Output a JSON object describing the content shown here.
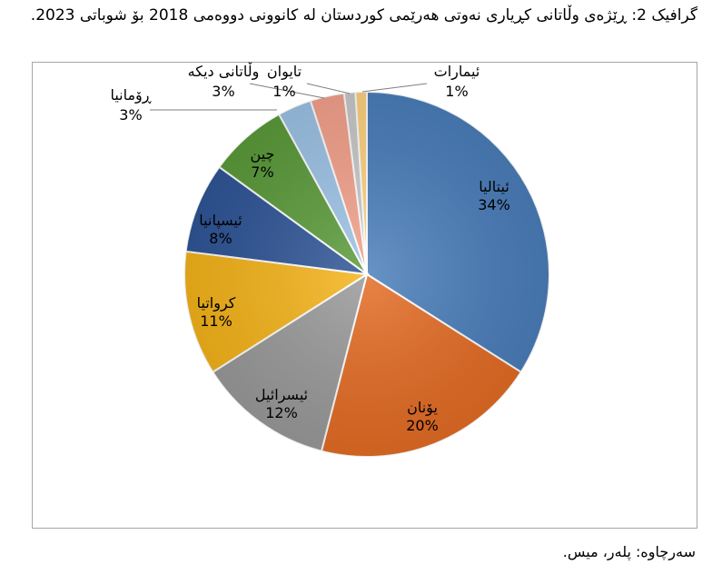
{
  "page": {
    "title": "گرافیک 2: ڕێژەی وڵاتانی کڕیاری نەوتی هەرێمی کوردستان لە کانوونی دووەمی 2018 بۆ شوباتی 2023.",
    "source": "سەرچاوە: پلەر، میس."
  },
  "chart_data": {
    "type": "pie",
    "title": "گرافیک 2: ڕێژەی وڵاتانی کڕیاری نەوتی هەرێمی کوردستان لە کانوونی دووەمی 2018 بۆ شوباتی 2023.",
    "value_unit": "%",
    "start_angle_deg": 0,
    "direction": "clockwise",
    "legend": "none",
    "slices": [
      {
        "label": "ئیتالیا",
        "value": 34,
        "display": "34%",
        "color": "#4a7ebb",
        "label_placement": "inside"
      },
      {
        "label": "یۆنان",
        "value": 20,
        "display": "20%",
        "color": "#e46c24",
        "label_placement": "inside"
      },
      {
        "label": "ئیسرائیل",
        "value": 12,
        "display": "12%",
        "color": "#9a9a9a",
        "label_placement": "inside"
      },
      {
        "label": "کرواتیا",
        "value": 11,
        "display": "11%",
        "color": "#f5b41a",
        "label_placement": "inside"
      },
      {
        "label": "ئیسپانیا",
        "value": 8,
        "display": "8%",
        "color": "#2f5597",
        "label_placement": "inside"
      },
      {
        "label": "چین",
        "value": 7,
        "display": "7%",
        "color": "#5b9b3a",
        "label_placement": "inside"
      },
      {
        "label": "ڕۆمانیا",
        "value": 3,
        "display": "3%",
        "color": "#9dc3e6",
        "label_placement": "outside"
      },
      {
        "label": "وڵاتانی دیکە",
        "value": 3,
        "display": "3%",
        "color": "#f4a28c",
        "label_placement": "outside"
      },
      {
        "label": "تایوان",
        "value": 1,
        "display": "1%",
        "color": "#c9c9c9",
        "label_placement": "outside"
      },
      {
        "label": "ئیمارات",
        "value": 1,
        "display": "1%",
        "color": "#ffd27f",
        "label_placement": "outside"
      }
    ]
  }
}
